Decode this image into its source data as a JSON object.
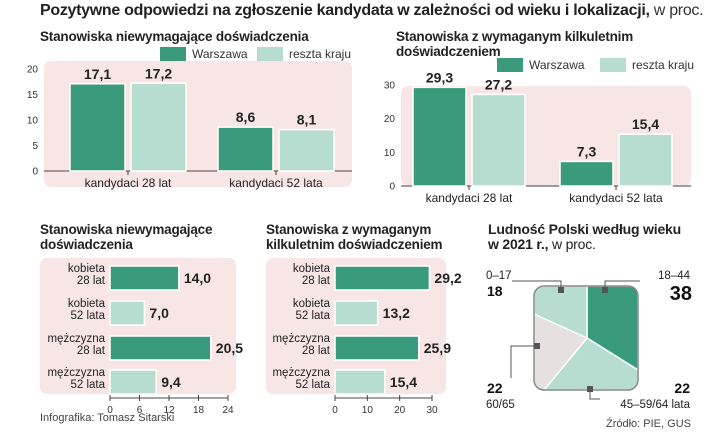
{
  "title": "Pozytywne odpowiedzi na zgłoszenie kandydata w zależności od wieku i lokalizacji,",
  "title_unit": "w proc.",
  "colors": {
    "warszawa": "#3a9a7c",
    "reszta": "#b6ddd0",
    "panel_bg": "#f8e6e6",
    "pie_extra": "#e7e0e0",
    "axis": "#444444",
    "hbar": "#3a9a7c",
    "hbar_light": "#b6ddd0"
  },
  "chart_data": [
    {
      "type": "bar",
      "id": "chart1",
      "title": "Stanowiska niewymagające doświadczenia",
      "categories": [
        "kandydaci 28 lat",
        "kandydaci 52 lata"
      ],
      "series": [
        {
          "name": "Warszawa",
          "values": [
            17.1,
            8.6
          ],
          "labels": [
            "17,1",
            "8,6"
          ]
        },
        {
          "name": "reszta kraju",
          "values": [
            17.2,
            8.1
          ],
          "labels": [
            "17,2",
            "8,1"
          ]
        }
      ],
      "ylim": [
        0,
        20
      ],
      "yticks": [
        "0",
        "5",
        "10",
        "15",
        "20"
      ]
    },
    {
      "type": "bar",
      "id": "chart2",
      "title_lines": [
        "Stanowiska z wymaganym kilkuletnim",
        "doświadczeniem"
      ],
      "categories": [
        "kandydaci 28 lat",
        "kandydaci 52 lata"
      ],
      "series": [
        {
          "name": "Warszawa",
          "values": [
            29.3,
            7.3
          ],
          "labels": [
            "29,3",
            "7,3"
          ]
        },
        {
          "name": "reszta kraju",
          "values": [
            27.2,
            15.4
          ],
          "labels": [
            "27,2",
            "15,4"
          ]
        }
      ],
      "ylim": [
        0,
        30
      ],
      "yticks": [
        "0",
        "10",
        "20",
        "30"
      ]
    },
    {
      "type": "bar",
      "orientation": "horizontal",
      "id": "chart3",
      "title_lines": [
        "Stanowiska niewymagające",
        "doświadczenia"
      ],
      "categories": [
        [
          "kobieta",
          "28 lat"
        ],
        [
          "kobieta",
          "52 lata"
        ],
        [
          "mężczyzna",
          "28 lat"
        ],
        [
          "mężczyzna",
          "52 lata"
        ]
      ],
      "values": [
        14.0,
        7.0,
        20.5,
        9.4
      ],
      "labels": [
        "14,0",
        "7,0",
        "20,5",
        "9,4"
      ],
      "xlim": [
        0,
        24
      ],
      "xticks": [
        "0",
        "6",
        "12",
        "18",
        "24"
      ]
    },
    {
      "type": "bar",
      "orientation": "horizontal",
      "id": "chart4",
      "title_lines": [
        "Stanowiska z wymaganym",
        "kilkuletnim doświadczeniem"
      ],
      "categories": [
        [
          "kobieta",
          "28 lat"
        ],
        [
          "kobieta",
          "52 lata"
        ],
        [
          "mężczyzna",
          "28 lat"
        ],
        [
          "mężczyzna",
          "52 lata"
        ]
      ],
      "values": [
        29.2,
        13.2,
        25.9,
        15.4
      ],
      "labels": [
        "29,2",
        "13,2",
        "25,9",
        "15,4"
      ],
      "xlim": [
        0,
        30
      ],
      "xticks": [
        "0",
        "10",
        "20",
        "30"
      ]
    },
    {
      "type": "pie",
      "id": "chart5",
      "title_lines": [
        "Ludność Polski według wieku",
        "w 2021 r.,"
      ],
      "title_unit": "w proc.",
      "slices": [
        {
          "label": "18–44",
          "value": 38,
          "value_label": "38"
        },
        {
          "label": "45–59/64 lata",
          "value": 22,
          "value_label": "22"
        },
        {
          "label": "60/65",
          "value": 22,
          "value_label": "22"
        },
        {
          "label": "0–17",
          "value": 18,
          "value_label": "18"
        }
      ]
    }
  ],
  "footer": {
    "credit": "Infografika: Tomasz Sitarski",
    "source": "Źródło: PIE, GUS"
  }
}
